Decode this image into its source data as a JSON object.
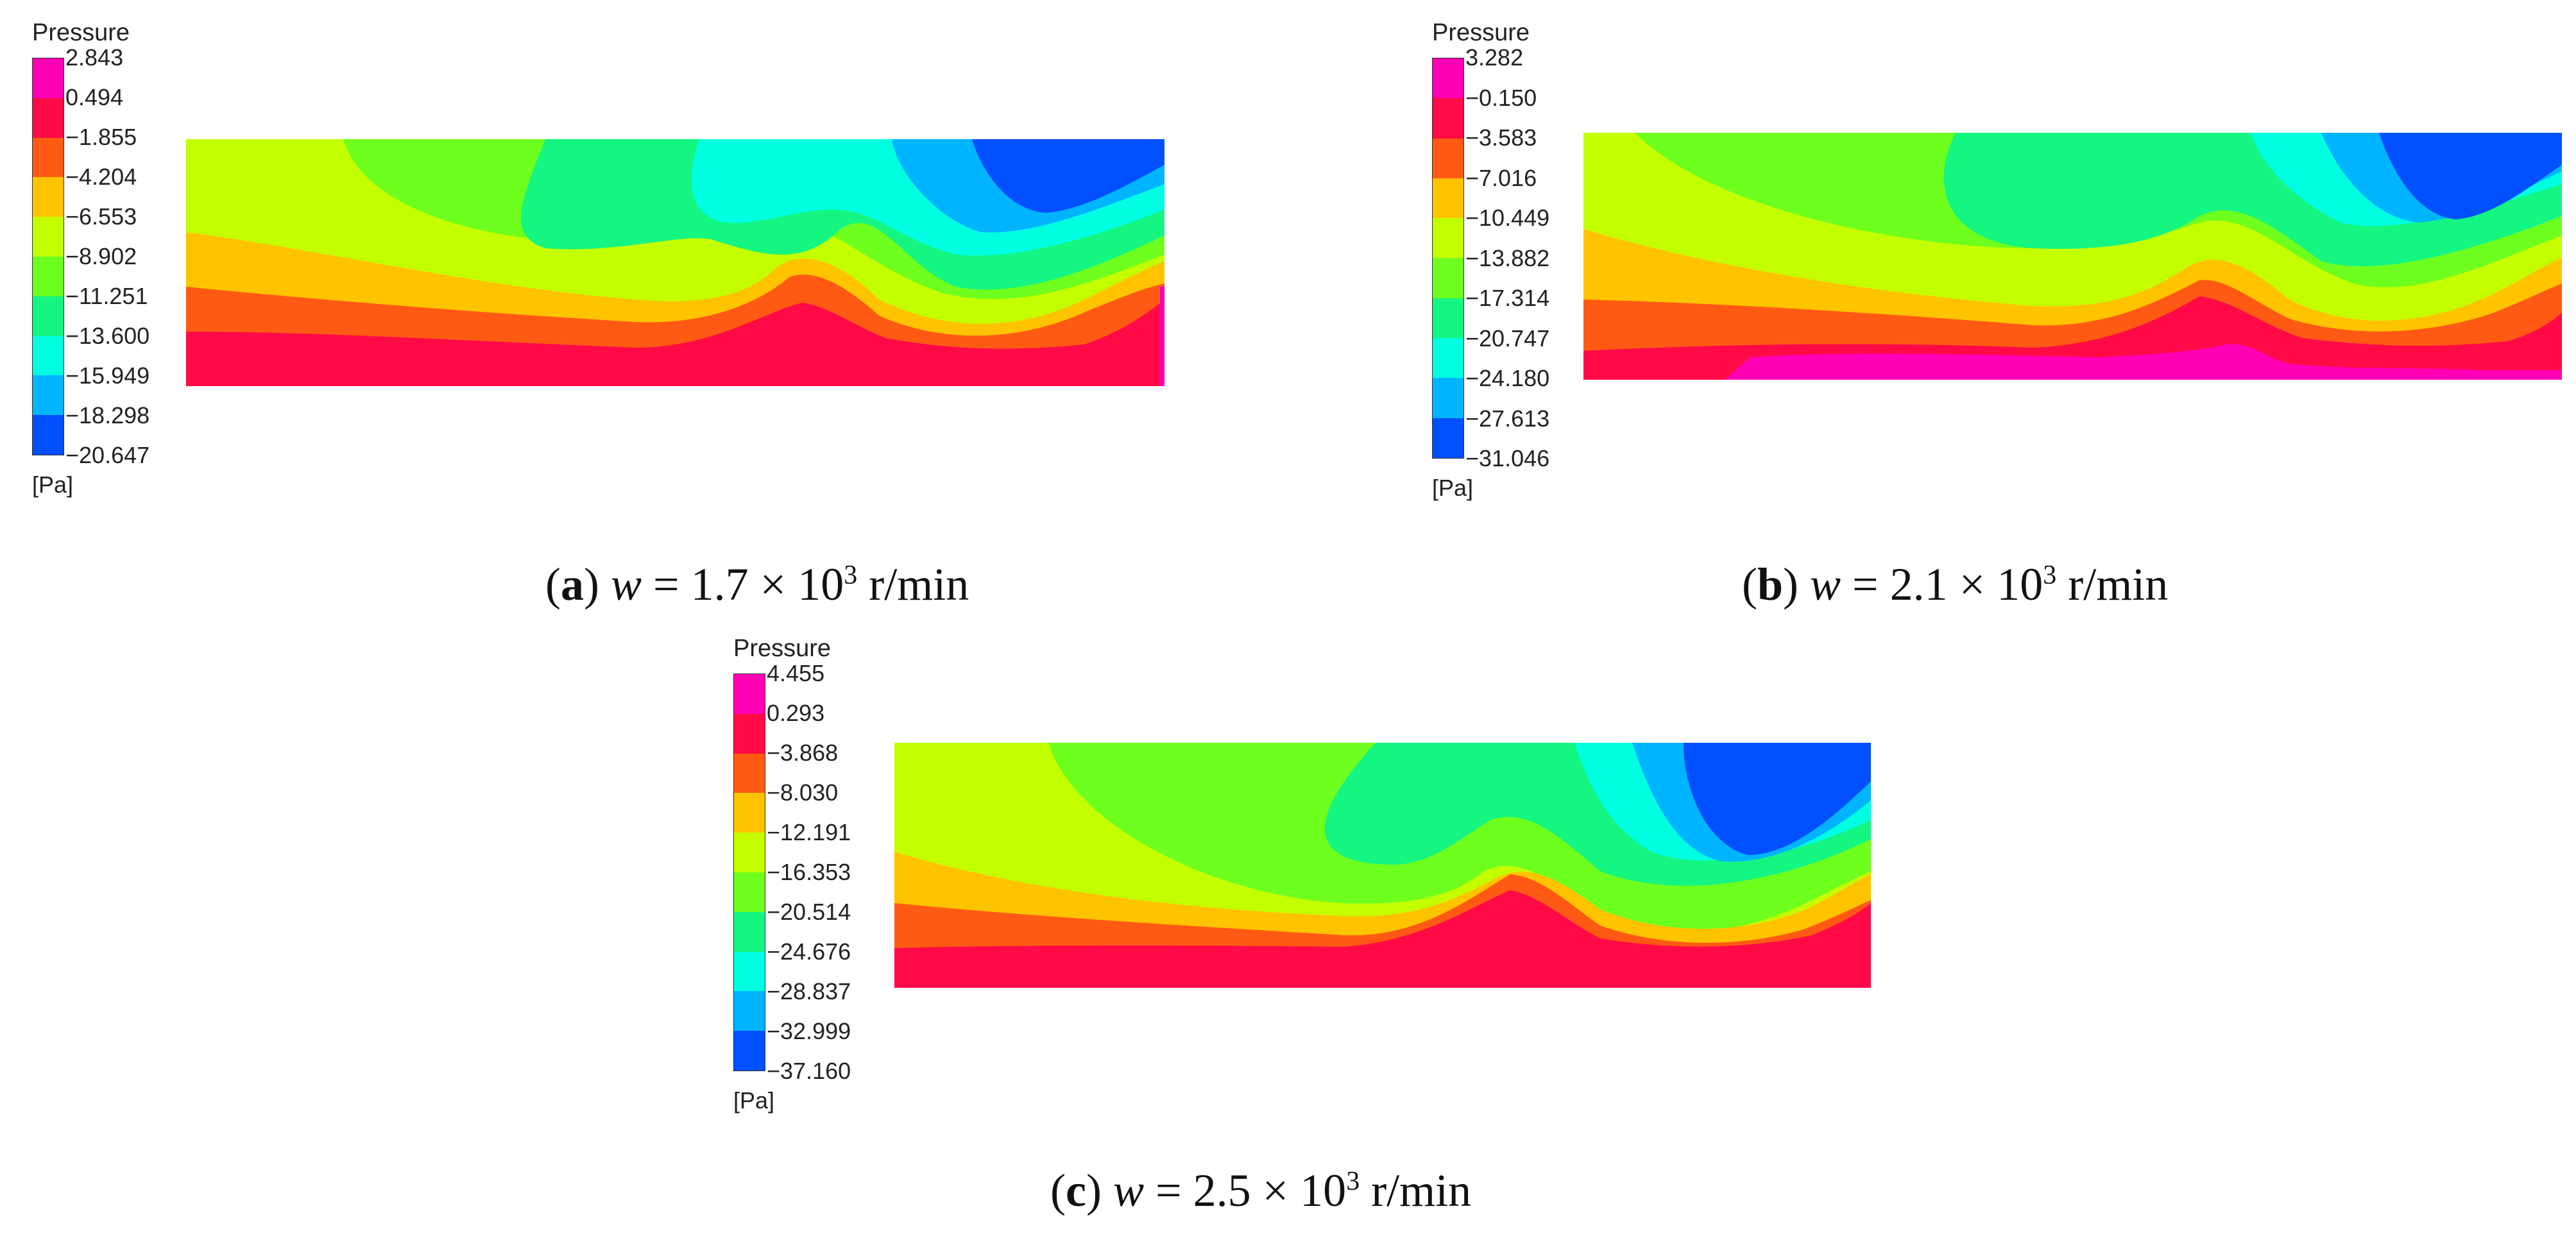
{
  "colors": {
    "levels": [
      "#ff00b4",
      "#ff0a46",
      "#ff5a14",
      "#ffc300",
      "#c3ff00",
      "#6eff1e",
      "#14f582",
      "#00ffe1",
      "#00b4ff",
      "#0050ff"
    ]
  },
  "panels": [
    {
      "id": "a",
      "legend_title": "Pressure",
      "legend_unit": "[Pa]",
      "ticks": [
        "2.843",
        "0.494",
        "−1.855",
        "−4.204",
        "−6.553",
        "−8.902",
        "−11.251",
        "−13.600",
        "−15.949",
        "−18.298",
        "−20.647"
      ],
      "caption": {
        "letter": "a",
        "var": "w",
        "value": "1.7",
        "mult": "× 10",
        "exp": "3",
        "unit": "r/min"
      }
    },
    {
      "id": "b",
      "legend_title": "Pressure",
      "legend_unit": "[Pa]",
      "ticks": [
        "3.282",
        "−0.150",
        "−3.583",
        "−7.016",
        "−10.449",
        "−13.882",
        "−17.314",
        "−20.747",
        "−24.180",
        "−27.613",
        "−31.046"
      ],
      "caption": {
        "letter": "b",
        "var": "w",
        "value": "2.1",
        "mult": "× 10",
        "exp": "3",
        "unit": "r/min"
      }
    },
    {
      "id": "c",
      "legend_title": "Pressure",
      "legend_unit": "[Pa]",
      "ticks": [
        "4.455",
        "0.293",
        "−3.868",
        "−8.030",
        "−12.191",
        "−16.353",
        "−20.514",
        "−24.676",
        "−28.837",
        "−32.999",
        "−37.160"
      ],
      "caption": {
        "letter": "c",
        "var": "w",
        "value": "2.5",
        "mult": "× 10",
        "exp": "3",
        "unit": "r/min"
      }
    }
  ]
}
